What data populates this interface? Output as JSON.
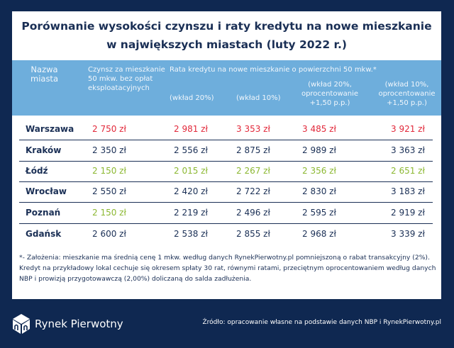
{
  "title": [
    "Porównanie wysokości czynszu i raty kredytu na nowe mieszkanie",
    "w największych miastach (luty 2022 r.)"
  ],
  "header": {
    "city": [
      "Nazwa",
      "miasta"
    ],
    "rent": [
      "Czynsz za mieszkanie",
      "50 mkw. bez opłat",
      "eksploatacyjnych"
    ],
    "loan_group": "Rata kredytu na nowe mieszkanie o powierzchni 50 mkw.*",
    "loan_cols": [
      [
        "(wkład 20%)"
      ],
      [
        "(wkład 10%)"
      ],
      [
        "(wkład 20%,",
        "oprocentowanie",
        "+1,50 p.p.)"
      ],
      [
        "(wkład 10%,",
        "oprocentowanie",
        "+1,50 p.p.)"
      ]
    ]
  },
  "colors": {
    "highest": "#e2283a",
    "lowest": "#8cb832",
    "navy": "#0f2851",
    "header": "#6eaedc"
  },
  "rows": [
    {
      "city": "Warszawa",
      "values": [
        "2 750 zł",
        "2 981 zł",
        "3 353 zł",
        "3 485 zł",
        "3 921 zł"
      ],
      "highlight": [
        "red",
        "red",
        "red",
        "red",
        "red"
      ]
    },
    {
      "city": "Kraków",
      "values": [
        "2 350 zł",
        "2 556 zł",
        "2 875 zł",
        "2 989 zł",
        "3 363 zł"
      ],
      "highlight": [
        "",
        "",
        "",
        "",
        ""
      ]
    },
    {
      "city": "Łódź",
      "values": [
        "2 150 zł",
        "2 015 zł",
        "2 267 zł",
        "2 356 zł",
        "2 651 zł"
      ],
      "highlight": [
        "green",
        "green",
        "green",
        "green",
        "green"
      ]
    },
    {
      "city": "Wrocław",
      "values": [
        "2 550 zł",
        "2 420 zł",
        "2 722 zł",
        "2 830 zł",
        "3 183 zł"
      ],
      "highlight": [
        "",
        "",
        "",
        "",
        ""
      ]
    },
    {
      "city": "Poznań",
      "values": [
        "2 150 zł",
        "2 219 zł",
        "2 496 zł",
        "2 595 zł",
        "2 919 zł"
      ],
      "highlight": [
        "green",
        "",
        "",
        "",
        ""
      ]
    },
    {
      "city": "Gdańsk",
      "values": [
        "2 600 zł",
        "2 538 zł",
        "2 855 zł",
        "2 968 zł",
        "3 339 zł"
      ],
      "highlight": [
        "",
        "",
        "",
        "",
        ""
      ]
    }
  ],
  "footnote": "*- Założenia: mieszkanie ma średnią cenę 1 mkw. według danych RynekPierwotny.pl pomniejszoną o rabat transakcyjny (2%). Kredyt na przykładowy lokal cechuje się okresem spłaty 30 rat, równymi ratami, przeciętnym oprocentowaniem według danych NBP i prowizją przygotowawczą (2,00%) doliczaną do salda zadłużenia.",
  "brand": "Rynek Pierwotny",
  "source": "Źródło: opracowanie własne na podstawie danych  NBP i RynekPierwotny.pl"
}
